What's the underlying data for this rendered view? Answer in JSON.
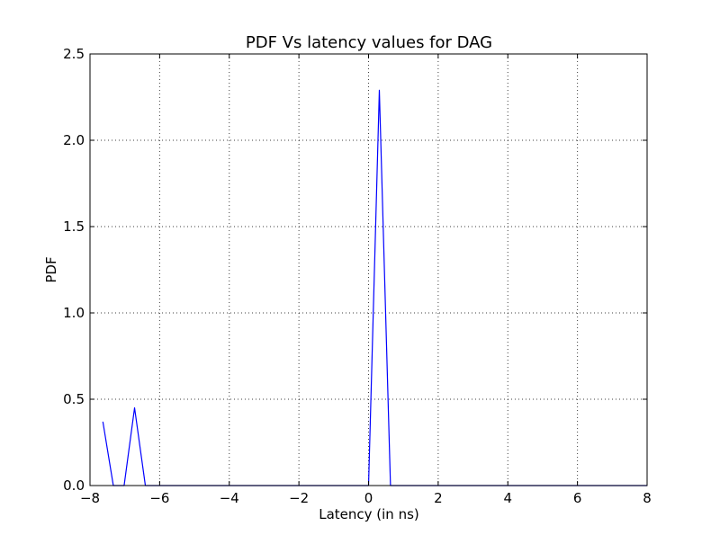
{
  "chart_data": {
    "type": "line",
    "title": "PDF Vs latency values for DAG",
    "xlabel": "Latency (in ns)",
    "ylabel": "PDF",
    "xlim": [
      -8,
      8
    ],
    "ylim": [
      0,
      2.5
    ],
    "grid": true,
    "x_ticks": [
      "−8",
      "−6",
      "−4",
      "−2",
      "0",
      "2",
      "4",
      "6",
      "8"
    ],
    "y_ticks": [
      "0.0",
      "0.5",
      "1.0",
      "1.5",
      "2.0",
      "2.5"
    ],
    "series_color": "#0000ff",
    "series": [
      {
        "points": [
          [
            -7.63,
            0.37
          ],
          [
            -7.33,
            0.0
          ],
          [
            -7.02,
            0.0
          ],
          [
            -6.72,
            0.45
          ],
          [
            -6.41,
            0.0
          ],
          [
            -6.1,
            0.0
          ],
          [
            -5.8,
            0.0
          ],
          [
            -5.5,
            0.0
          ],
          [
            -5.19,
            0.0
          ],
          [
            -4.88,
            0.0
          ],
          [
            -4.58,
            0.0
          ],
          [
            -4.27,
            0.0
          ],
          [
            -3.97,
            0.0
          ],
          [
            -3.66,
            0.0
          ],
          [
            -3.36,
            0.0
          ],
          [
            -3.05,
            0.0
          ],
          [
            -2.75,
            0.0
          ],
          [
            -2.44,
            0.0
          ],
          [
            -2.14,
            0.0
          ],
          [
            -1.83,
            0.0
          ],
          [
            -1.53,
            0.0
          ],
          [
            -1.22,
            0.0
          ],
          [
            -0.92,
            0.0
          ],
          [
            -0.61,
            0.0
          ],
          [
            -0.31,
            0.0
          ],
          [
            0.0,
            0.0
          ],
          [
            0.31,
            2.29
          ],
          [
            0.63,
            0.0
          ],
          [
            0.94,
            0.0
          ],
          [
            1.25,
            0.0
          ],
          [
            1.56,
            0.0
          ],
          [
            1.88,
            0.0
          ],
          [
            2.19,
            0.0
          ],
          [
            2.5,
            0.0
          ],
          [
            2.81,
            0.0
          ],
          [
            3.13,
            0.0
          ],
          [
            3.44,
            0.0
          ],
          [
            3.75,
            0.0
          ],
          [
            4.06,
            0.0
          ],
          [
            4.38,
            0.0
          ],
          [
            4.69,
            0.0
          ],
          [
            5.0,
            0.0
          ],
          [
            5.31,
            0.0
          ],
          [
            5.63,
            0.0
          ],
          [
            5.94,
            0.0
          ],
          [
            6.25,
            0.0
          ],
          [
            6.56,
            0.0
          ],
          [
            6.88,
            0.0
          ],
          [
            7.19,
            0.0
          ],
          [
            7.5,
            0.0
          ],
          [
            7.81,
            0.0
          ],
          [
            8.0,
            0.0
          ]
        ]
      }
    ]
  }
}
